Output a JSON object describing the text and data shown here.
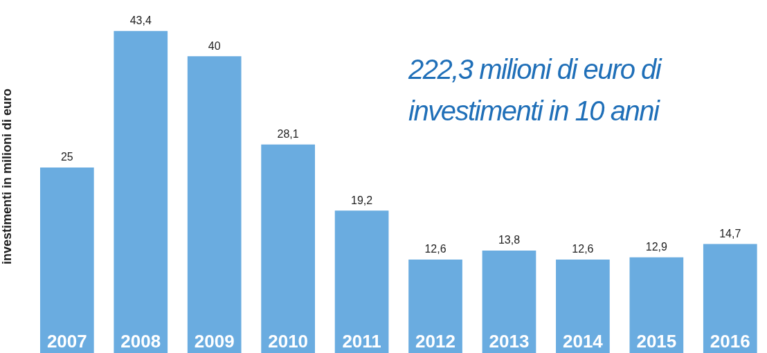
{
  "chart_data": {
    "type": "bar",
    "ylabel": "investimenti in milioni di euro",
    "categories": [
      "2007",
      "2008",
      "2009",
      "2010",
      "2011",
      "2012",
      "2013",
      "2014",
      "2015",
      "2016"
    ],
    "values": [
      25,
      43.4,
      40,
      28.1,
      19.2,
      12.6,
      13.8,
      12.6,
      12.9,
      14.7
    ],
    "value_labels": [
      "25",
      "43,4",
      "40",
      "28,1",
      "19,2",
      "12,6",
      "13,8",
      "12,6",
      "12,9",
      "14,7"
    ],
    "color": "#6aace0",
    "annotations": [
      "222,3 milioni di euro di investimenti in 10 anni"
    ],
    "grid": false,
    "legend": false
  }
}
